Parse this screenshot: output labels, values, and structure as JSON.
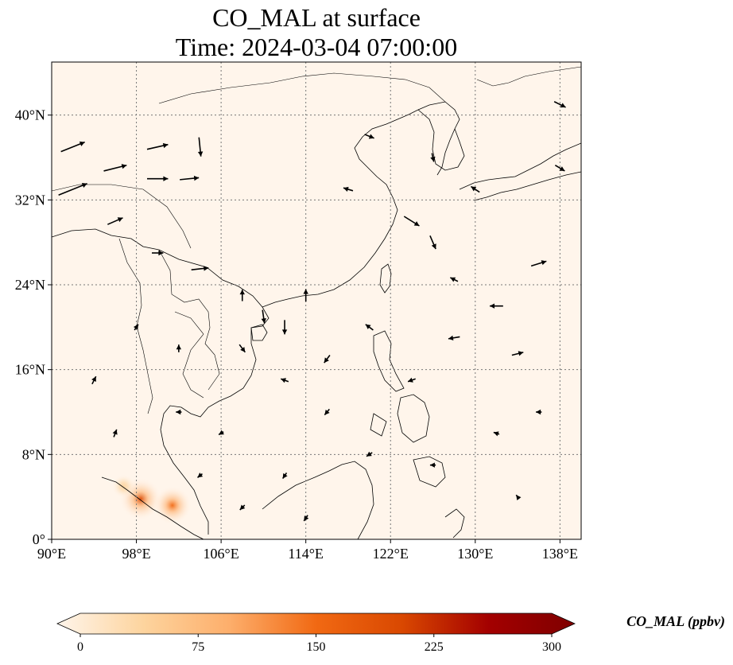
{
  "chart_data": {
    "type": "map-field",
    "title_line1": "CO_MAL at surface",
    "title_line2": "Time: 2024-03-04 07:00:00",
    "lon_range": [
      90,
      140
    ],
    "lat_range": [
      0,
      45
    ],
    "xticks": [
      {
        "value": 90,
        "label": "90°E"
      },
      {
        "value": 98,
        "label": "98°E"
      },
      {
        "value": 106,
        "label": "106°E"
      },
      {
        "value": 114,
        "label": "114°E"
      },
      {
        "value": 122,
        "label": "122°E"
      },
      {
        "value": 130,
        "label": "130°E"
      },
      {
        "value": 138,
        "label": "138°E"
      }
    ],
    "yticks": [
      {
        "value": 0,
        "label": "0°"
      },
      {
        "value": 8,
        "label": "8°N"
      },
      {
        "value": 16,
        "label": "16°N"
      },
      {
        "value": 24,
        "label": "24°N"
      },
      {
        "value": 32,
        "label": "32°N"
      },
      {
        "value": 40,
        "label": "40°N"
      }
    ],
    "grid": true,
    "colormap": [
      "#fff5eb",
      "#fdd49e",
      "#fdae6b",
      "#f16913",
      "#d94801",
      "#a30000",
      "#7f0000"
    ],
    "colorbar": {
      "label": "CO_MAL (ppbv)",
      "min": 0,
      "max": 300,
      "ticks": [
        0,
        75,
        150,
        225,
        300
      ],
      "extend": "both"
    },
    "hotspots": [
      {
        "lon": 98.4,
        "lat": 3.8,
        "value": 200
      },
      {
        "lon": 101.4,
        "lat": 3.2,
        "value": 170
      },
      {
        "lon": 96.8,
        "lat": 5.0,
        "value": 60
      }
    ],
    "wind_vectors": [
      {
        "lon": 92,
        "lat": 37,
        "u": 2.5,
        "v": 1.0
      },
      {
        "lon": 92,
        "lat": 33,
        "u": 3.0,
        "v": 1.2
      },
      {
        "lon": 96,
        "lat": 35,
        "u": 2.4,
        "v": 0.6
      },
      {
        "lon": 100,
        "lat": 37,
        "u": 2.2,
        "v": 0.5
      },
      {
        "lon": 100,
        "lat": 34,
        "u": 2.2,
        "v": 0.0
      },
      {
        "lon": 103,
        "lat": 34,
        "u": 2.0,
        "v": 0.2
      },
      {
        "lon": 104,
        "lat": 37,
        "u": 0.2,
        "v": -2.0
      },
      {
        "lon": 96,
        "lat": 30,
        "u": 1.6,
        "v": 0.7
      },
      {
        "lon": 100,
        "lat": 27,
        "u": 1.2,
        "v": 0.0
      },
      {
        "lon": 104,
        "lat": 25.5,
        "u": 1.8,
        "v": 0.2
      },
      {
        "lon": 108,
        "lat": 23,
        "u": 0.0,
        "v": 1.2
      },
      {
        "lon": 110,
        "lat": 21,
        "u": 0.2,
        "v": -1.4
      },
      {
        "lon": 112,
        "lat": 20,
        "u": 0.0,
        "v": -1.5
      },
      {
        "lon": 114,
        "lat": 23,
        "u": 0.0,
        "v": 1.3
      },
      {
        "lon": 108,
        "lat": 18,
        "u": 0.6,
        "v": -0.8
      },
      {
        "lon": 112,
        "lat": 15,
        "u": -0.8,
        "v": 0.3
      },
      {
        "lon": 116,
        "lat": 17,
        "u": -0.6,
        "v": -0.8
      },
      {
        "lon": 120,
        "lat": 20,
        "u": -0.8,
        "v": 0.6
      },
      {
        "lon": 124,
        "lat": 30,
        "u": 1.6,
        "v": -1.0
      },
      {
        "lon": 126,
        "lat": 28,
        "u": 0.6,
        "v": -1.4
      },
      {
        "lon": 128,
        "lat": 24.5,
        "u": -0.8,
        "v": 0.4
      },
      {
        "lon": 132,
        "lat": 22,
        "u": -1.4,
        "v": 0.0
      },
      {
        "lon": 134,
        "lat": 17.5,
        "u": 1.2,
        "v": 0.3
      },
      {
        "lon": 136,
        "lat": 26,
        "u": 1.6,
        "v": 0.5
      },
      {
        "lon": 130,
        "lat": 33,
        "u": -0.9,
        "v": 0.6
      },
      {
        "lon": 138,
        "lat": 35,
        "u": 1.0,
        "v": -0.6
      },
      {
        "lon": 138,
        "lat": 41,
        "u": 1.2,
        "v": -0.6
      },
      {
        "lon": 126,
        "lat": 36,
        "u": 0.2,
        "v": -0.9
      },
      {
        "lon": 120,
        "lat": 38,
        "u": 1.0,
        "v": -0.4
      },
      {
        "lon": 118,
        "lat": 33,
        "u": -1.0,
        "v": 0.3
      },
      {
        "lon": 128,
        "lat": 19,
        "u": -1.2,
        "v": -0.2
      },
      {
        "lon": 124,
        "lat": 15,
        "u": -0.8,
        "v": -0.3
      },
      {
        "lon": 116,
        "lat": 12,
        "u": -0.5,
        "v": -0.6
      },
      {
        "lon": 120,
        "lat": 8,
        "u": -0.6,
        "v": -0.4
      },
      {
        "lon": 112,
        "lat": 6,
        "u": -0.4,
        "v": -0.6
      },
      {
        "lon": 106,
        "lat": 10,
        "u": -0.5,
        "v": -0.3
      },
      {
        "lon": 102,
        "lat": 12,
        "u": -0.6,
        "v": 0.0
      },
      {
        "lon": 96,
        "lat": 10,
        "u": 0.3,
        "v": 0.8
      },
      {
        "lon": 94,
        "lat": 15,
        "u": 0.4,
        "v": 0.8
      },
      {
        "lon": 98,
        "lat": 20,
        "u": 0.4,
        "v": 0.6
      },
      {
        "lon": 102,
        "lat": 18,
        "u": 0.0,
        "v": 0.8
      },
      {
        "lon": 104,
        "lat": 6,
        "u": -0.5,
        "v": -0.4
      },
      {
        "lon": 108,
        "lat": 3,
        "u": -0.5,
        "v": -0.5
      },
      {
        "lon": 114,
        "lat": 2,
        "u": -0.4,
        "v": -0.6
      },
      {
        "lon": 126,
        "lat": 7,
        "u": -0.6,
        "v": 0.0
      },
      {
        "lon": 132,
        "lat": 10,
        "u": -0.6,
        "v": 0.2
      },
      {
        "lon": 136,
        "lat": 12,
        "u": -0.6,
        "v": 0.0
      },
      {
        "lon": 134,
        "lat": 4,
        "u": -0.3,
        "v": 0.4
      }
    ]
  }
}
